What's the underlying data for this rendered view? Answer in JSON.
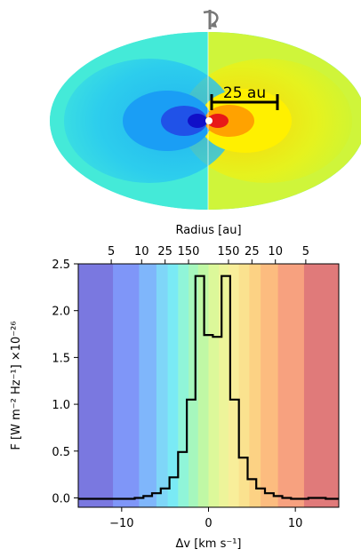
{
  "disk_panel": {
    "rotation_icon": "rotation-arrow-icon",
    "scale_bar_label": "25 au",
    "colors": {
      "outer": "#45f0d2",
      "redshift_side": "#d7f52a",
      "blueshift_side": "#2ed2f0",
      "mid_blue": "#1aa4f5",
      "inner_blue": "#2040e0",
      "core_blue": "#1010c0",
      "mid_orange": "#ffd000",
      "inner_orange": "#ff8a10",
      "core_red": "#e01010"
    }
  },
  "chart_data": {
    "type": "line",
    "drawstyle": "steps-mid",
    "xlabel": "Δv [km s⁻¹]",
    "ylabel": "F [W m⁻² Hz⁻¹] ×10⁻²⁶",
    "top_xlabel": "Radius [au]",
    "xlim": [
      -15,
      15
    ],
    "ylim": [
      -0.1,
      2.5
    ],
    "xticks": [
      -10,
      0,
      10
    ],
    "xtick_labels": [
      "−10",
      "0",
      "10"
    ],
    "yticks": [
      0.0,
      0.5,
      1.0,
      1.5,
      2.0,
      2.5
    ],
    "ytick_labels": [
      "0.0",
      "0.5",
      "1.0",
      "1.5",
      "2.0",
      "2.5"
    ],
    "top_ticks": [
      {
        "x": -11.2,
        "label": "5"
      },
      {
        "x": -7.7,
        "label": "10"
      },
      {
        "x": -5.0,
        "label": "25"
      },
      {
        "x": -2.3,
        "label": "150"
      },
      {
        "x": 2.3,
        "label": "150"
      },
      {
        "x": 5.0,
        "label": "25"
      },
      {
        "x": 7.7,
        "label": "10"
      },
      {
        "x": 11.2,
        "label": "5"
      }
    ],
    "background_bands": [
      {
        "x0": -15,
        "x1": -11,
        "color": "#7a78e0"
      },
      {
        "x0": -11,
        "x1": -8,
        "color": "#7f96f8"
      },
      {
        "x0": -8,
        "x1": -6,
        "color": "#7fb6fb"
      },
      {
        "x0": -6,
        "x1": -4.7,
        "color": "#7fd6f8"
      },
      {
        "x0": -4.7,
        "x1": -3.5,
        "color": "#7aeaf5"
      },
      {
        "x0": -3.5,
        "x1": -2.3,
        "color": "#90f5d8"
      },
      {
        "x0": -2.3,
        "x1": -1.2,
        "color": "#a6f7bd"
      },
      {
        "x0": -1.2,
        "x1": 0,
        "color": "#c0f8a5"
      },
      {
        "x0": 0,
        "x1": 1.2,
        "color": "#dcf89a"
      },
      {
        "x0": 1.2,
        "x1": 2.3,
        "color": "#edf49a"
      },
      {
        "x0": 2.3,
        "x1": 3.5,
        "color": "#f8ee9a"
      },
      {
        "x0": 3.5,
        "x1": 4.7,
        "color": "#fae28f"
      },
      {
        "x0": 4.7,
        "x1": 6,
        "color": "#fcd284"
      },
      {
        "x0": 6,
        "x1": 8,
        "color": "#fcbc7f"
      },
      {
        "x0": 8,
        "x1": 11,
        "color": "#f7a17f"
      },
      {
        "x0": 11,
        "x1": 15,
        "color": "#e07a7a"
      }
    ],
    "series": [
      {
        "x": [
          -15,
          -14,
          -13,
          -12,
          -11,
          -10,
          -9,
          -8,
          -7,
          -6,
          -5,
          -4,
          -3,
          -2,
          -1,
          0,
          1,
          2,
          3,
          4,
          5,
          6,
          7,
          8,
          9,
          10,
          11,
          12,
          13,
          14,
          15
        ],
        "y": [
          -0.01,
          -0.01,
          -0.01,
          -0.01,
          -0.01,
          -0.01,
          -0.01,
          0.0,
          0.02,
          0.05,
          0.1,
          0.22,
          0.49,
          1.05,
          2.37,
          1.74,
          1.72,
          2.37,
          1.05,
          0.43,
          0.2,
          0.1,
          0.05,
          0.02,
          0.0,
          -0.01,
          -0.01,
          0.0,
          0.0,
          -0.01,
          -0.01
        ],
        "color": "#000000"
      }
    ]
  }
}
